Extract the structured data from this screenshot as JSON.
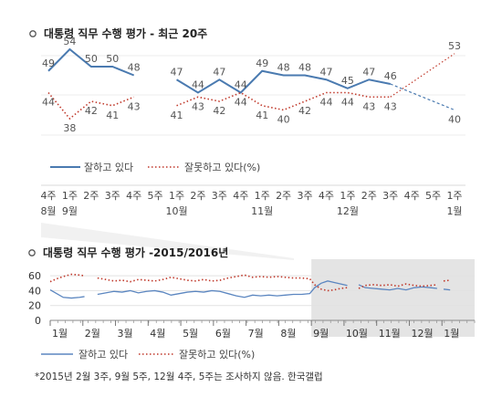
{
  "chart_data": [
    {
      "type": "line",
      "title": "대통령 직무 수행 평가 - 최근 20주",
      "title_icon": "ring-bullet-icon",
      "x_labels": [
        {
          "line1": "4주",
          "line2": "8월"
        },
        {
          "line1": "1주",
          "line2": "9월"
        },
        {
          "line1": "2주",
          "line2": ""
        },
        {
          "line1": "3주",
          "line2": ""
        },
        {
          "line1": "4주",
          "line2": ""
        },
        {
          "line1": "5주",
          "line2": ""
        },
        {
          "line1": "1주",
          "line2": "10월"
        },
        {
          "line1": "2주",
          "line2": ""
        },
        {
          "line1": "3주",
          "line2": ""
        },
        {
          "line1": "4주",
          "line2": ""
        },
        {
          "line1": "1주",
          "line2": "11월"
        },
        {
          "line1": "2주",
          "line2": ""
        },
        {
          "line1": "3주",
          "line2": ""
        },
        {
          "line1": "4주",
          "line2": ""
        },
        {
          "line1": "1주",
          "line2": "12월"
        },
        {
          "line1": "2주",
          "line2": ""
        },
        {
          "line1": "3주",
          "line2": ""
        },
        {
          "line1": "4주",
          "line2": ""
        },
        {
          "line1": "5주",
          "line2": ""
        },
        {
          "line1": "1주",
          "line2": "1월"
        }
      ],
      "series": [
        {
          "name": "잘하고 있다",
          "color": "#4a7ab0",
          "style": "solid",
          "values": [
            49,
            54,
            50,
            50,
            48,
            null,
            47,
            44,
            47,
            44,
            49,
            48,
            48,
            47,
            45,
            47,
            46,
            null,
            null,
            40
          ]
        },
        {
          "name": "잘못하고 있다(%)",
          "color": "#c0392b",
          "style": "dotted",
          "values": [
            44,
            38,
            42,
            41,
            43,
            null,
            41,
            43,
            42,
            44,
            41,
            40,
            42,
            44,
            44,
            43,
            43,
            null,
            null,
            53
          ]
        }
      ],
      "labels_approve": [
        "49",
        "54",
        "50",
        "50",
        "48",
        "",
        "47",
        "44",
        "47",
        "44",
        "49",
        "48",
        "48",
        "47",
        "45",
        "47",
        "46",
        "",
        "",
        "40"
      ],
      "labels_disapprove": [
        "44",
        "38",
        "42",
        "41",
        "43",
        "",
        "41",
        "43",
        "42",
        "44",
        "41",
        "40",
        "42",
        "44",
        "44",
        "43",
        "43",
        "",
        "",
        "53"
      ],
      "legend": [
        {
          "label": "잘하고 있다",
          "style": "solid",
          "color": "#4a7ab0"
        },
        {
          "label": "잘못하고 있다(%)",
          "style": "dotted",
          "color": "#c0392b"
        }
      ]
    },
    {
      "type": "line",
      "title": "대통령 직무 수행 평가 -2015/2016년",
      "title_icon": "ring-bullet-icon",
      "y_ticks": [
        "60",
        "40",
        "20",
        "0"
      ],
      "y_tick_values": [
        60,
        40,
        20,
        0
      ],
      "ylim": [
        0,
        70
      ],
      "months": [
        "1월",
        "2월",
        "3월",
        "4월",
        "5월",
        "6월",
        "7월",
        "8월",
        "9월",
        "10월",
        "11월",
        "12월",
        "1월"
      ],
      "highlight_range_months": [
        8,
        13
      ],
      "series": [
        {
          "name": "잘하고 있다",
          "color": "#5b86c0",
          "style": "solid",
          "segments": [
            [
              [
                0.0,
                41
              ],
              [
                0.2,
                36
              ],
              [
                0.4,
                31
              ],
              [
                0.65,
                30
              ],
              [
                0.9,
                31
              ],
              [
                1.05,
                32
              ]
            ],
            [
              [
                1.45,
                35
              ],
              [
                1.7,
                37
              ],
              [
                1.95,
                39
              ],
              [
                2.2,
                38
              ],
              [
                2.45,
                40
              ],
              [
                2.7,
                37
              ],
              [
                2.95,
                39
              ],
              [
                3.2,
                40
              ],
              [
                3.45,
                38
              ],
              [
                3.7,
                34
              ],
              [
                3.95,
                36
              ],
              [
                4.2,
                38
              ],
              [
                4.45,
                39
              ],
              [
                4.7,
                38
              ],
              [
                4.95,
                40
              ],
              [
                5.2,
                39
              ],
              [
                5.45,
                36
              ],
              [
                5.7,
                33
              ],
              [
                5.95,
                31
              ],
              [
                6.2,
                34
              ],
              [
                6.45,
                33
              ],
              [
                6.7,
                34
              ],
              [
                6.95,
                33
              ],
              [
                7.2,
                34
              ],
              [
                7.45,
                35
              ],
              [
                7.7,
                35
              ],
              [
                7.95,
                36
              ],
              [
                8.1,
                44
              ],
              [
                8.3,
                50
              ],
              [
                8.5,
                53
              ],
              [
                8.7,
                51
              ],
              [
                8.9,
                49
              ],
              [
                9.1,
                47
              ]
            ],
            [
              [
                9.45,
                48
              ],
              [
                9.65,
                44
              ],
              [
                9.9,
                43
              ],
              [
                10.15,
                42
              ],
              [
                10.4,
                41
              ],
              [
                10.65,
                43
              ],
              [
                10.9,
                41
              ],
              [
                11.15,
                44
              ],
              [
                11.4,
                45
              ],
              [
                11.65,
                44
              ],
              [
                11.85,
                43
              ]
            ],
            [
              [
                12.05,
                42
              ],
              [
                12.25,
                41
              ]
            ]
          ]
        },
        {
          "name": "잘못하고 있다(%)",
          "color": "#c0392b",
          "style": "dotted",
          "segments": [
            [
              [
                0.0,
                52
              ],
              [
                0.2,
                56
              ],
              [
                0.4,
                59
              ],
              [
                0.65,
                62
              ],
              [
                0.9,
                61
              ],
              [
                1.05,
                60
              ]
            ],
            [
              [
                1.45,
                57
              ],
              [
                1.7,
                55
              ],
              [
                1.95,
                53
              ],
              [
                2.2,
                54
              ],
              [
                2.45,
                52
              ],
              [
                2.7,
                55
              ],
              [
                2.95,
                54
              ],
              [
                3.2,
                53
              ],
              [
                3.45,
                55
              ],
              [
                3.7,
                58
              ],
              [
                3.95,
                56
              ],
              [
                4.2,
                54
              ],
              [
                4.45,
                53
              ],
              [
                4.7,
                55
              ],
              [
                4.95,
                53
              ],
              [
                5.2,
                54
              ],
              [
                5.45,
                57
              ],
              [
                5.7,
                59
              ],
              [
                5.95,
                61
              ],
              [
                6.2,
                58
              ],
              [
                6.45,
                59
              ],
              [
                6.7,
                58
              ],
              [
                6.95,
                59
              ],
              [
                7.2,
                58
              ],
              [
                7.45,
                57
              ],
              [
                7.7,
                57
              ],
              [
                7.95,
                56
              ],
              [
                8.1,
                48
              ],
              [
                8.3,
                42
              ],
              [
                8.5,
                40
              ],
              [
                8.7,
                41
              ],
              [
                8.9,
                43
              ],
              [
                9.1,
                44
              ]
            ],
            [
              [
                9.45,
                43
              ],
              [
                9.65,
                47
              ],
              [
                9.9,
                48
              ],
              [
                10.15,
                47
              ],
              [
                10.4,
                48
              ],
              [
                10.65,
                46
              ],
              [
                10.9,
                49
              ],
              [
                11.15,
                47
              ],
              [
                11.4,
                46
              ],
              [
                11.65,
                47
              ],
              [
                11.85,
                48
              ]
            ],
            [
              [
                12.05,
                53
              ],
              [
                12.25,
                54
              ]
            ]
          ]
        }
      ],
      "legend": [
        {
          "label": "잘하고 있다",
          "style": "solid",
          "color": "#5b86c0"
        },
        {
          "label": "잘못하고 있다(%)",
          "style": "dotted",
          "color": "#c0392b"
        }
      ]
    }
  ],
  "footnote": "*2015년 2월 3주, 9월 5주, 12월 4주, 5주는 조사하지 않음. 한국갤럽"
}
